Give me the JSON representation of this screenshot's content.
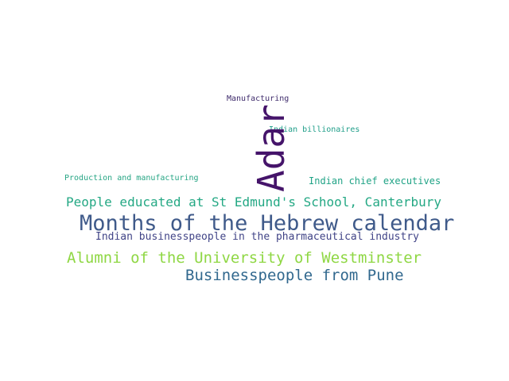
{
  "words": [
    {
      "key": "manufacturing",
      "text": "Manufacturing",
      "color": "#3e2a6b"
    },
    {
      "key": "billionaires",
      "text": "Indian billionaires",
      "color": "#1f9e89"
    },
    {
      "key": "production",
      "text": "Production and manufacturing",
      "color": "#26a584"
    },
    {
      "key": "chief",
      "text": "Indian chief executives",
      "color": "#20a386"
    },
    {
      "key": "adar",
      "text": "Adar",
      "color": "#45146a"
    },
    {
      "key": "stedmunds",
      "text": "People educated at St Edmund's School, Canterbury",
      "color": "#24a884"
    },
    {
      "key": "hebrew",
      "text": "Months of the Hebrew calendar",
      "color": "#3f5a8a"
    },
    {
      "key": "pharma",
      "text": "Indian businesspeople in the pharmaceutical industry",
      "color": "#414487"
    },
    {
      "key": "westminster",
      "text": "Alumni of the University of Westminster",
      "color": "#8fd744"
    },
    {
      "key": "pune",
      "text": "Businesspeople from Pune",
      "color": "#31688e"
    }
  ]
}
